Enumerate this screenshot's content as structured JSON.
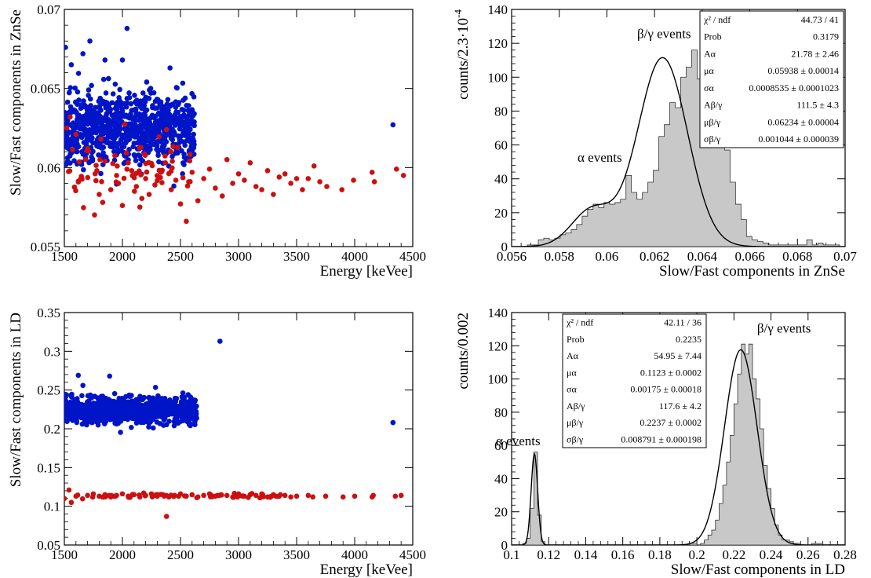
{
  "colors": {
    "beta": "#0014c8",
    "alpha": "#cc0f0f",
    "hist_fill": "#c8c8c8",
    "fit": "#000000"
  },
  "chart_data": [
    {
      "id": "scatter_znse",
      "type": "scatter",
      "xlabel": "Energy [keVee]",
      "ylabel": "Slow/Fast components in ZnSe",
      "xlim": [
        1500,
        4500
      ],
      "ylim": [
        0.055,
        0.07
      ],
      "xticks": [
        "1500",
        "2000",
        "2500",
        "3000",
        "3500",
        "4000",
        "4500"
      ],
      "yticks": [
        "0.055",
        "0.06",
        "0.065",
        "0.07"
      ],
      "series": [
        {
          "color_key": "beta",
          "cluster": {
            "x_range": [
              1500,
              2620
            ],
            "y_mean": 0.0625,
            "y_sigma": 0.00105,
            "count": 900
          },
          "points": [
            [
              2040,
              0.0688
            ],
            [
              1720,
              0.068
            ],
            [
              1510,
              0.0676
            ],
            [
              4330,
              0.0627
            ],
            [
              1660,
              0.0672
            ],
            [
              2000,
              0.0668
            ],
            [
              1850,
              0.0668
            ],
            [
              1560,
              0.0665
            ],
            [
              2410,
              0.0663
            ]
          ]
        },
        {
          "color_key": "alpha",
          "points": [
            [
              1520,
              0.0625
            ],
            [
              1550,
              0.0632
            ],
            [
              1600,
              0.0621
            ],
            [
              1700,
              0.0612
            ],
            [
              1760,
              0.057
            ],
            [
              1780,
              0.0598
            ],
            [
              1800,
              0.0583
            ],
            [
              1830,
              0.0578
            ],
            [
              1850,
              0.0604
            ],
            [
              1900,
              0.0586
            ],
            [
              1950,
              0.0595
            ],
            [
              2000,
              0.0576
            ],
            [
              2050,
              0.0603
            ],
            [
              2080,
              0.0598
            ],
            [
              2120,
              0.0588
            ],
            [
              2150,
              0.0575
            ],
            [
              2200,
              0.0593
            ],
            [
              2230,
              0.0583
            ],
            [
              2280,
              0.0589
            ],
            [
              2330,
              0.0597
            ],
            [
              2380,
              0.0624
            ],
            [
              2420,
              0.0586
            ],
            [
              2460,
              0.0592
            ],
            [
              2500,
              0.0577
            ],
            [
              2550,
              0.0566
            ],
            [
              2600,
              0.0597
            ],
            [
              2650,
              0.0579
            ],
            [
              2700,
              0.0593
            ],
            [
              2750,
              0.0599
            ],
            [
              2800,
              0.0587
            ],
            [
              2860,
              0.0582
            ],
            [
              2900,
              0.0605
            ],
            [
              2950,
              0.059
            ],
            [
              3000,
              0.0596
            ],
            [
              3050,
              0.0592
            ],
            [
              3100,
              0.0603
            ],
            [
              3150,
              0.0588
            ],
            [
              3200,
              0.0586
            ],
            [
              3250,
              0.0598
            ],
            [
              3300,
              0.0583
            ],
            [
              3350,
              0.0594
            ],
            [
              3400,
              0.0596
            ],
            [
              3450,
              0.059
            ],
            [
              3500,
              0.0593
            ],
            [
              3550,
              0.0586
            ],
            [
              3600,
              0.0593
            ],
            [
              3650,
              0.0601
            ],
            [
              3700,
              0.0591
            ],
            [
              3760,
              0.0588
            ],
            [
              3890,
              0.0586
            ],
            [
              3990,
              0.0592
            ],
            [
              4150,
              0.0597
            ],
            [
              4170,
              0.0591
            ],
            [
              4360,
              0.0599
            ],
            [
              4420,
              0.0595
            ]
          ],
          "cluster": {
            "x_range": [
              1530,
              2600
            ],
            "y_mean": 0.0599,
            "y_sigma": 0.0009,
            "count": 70
          }
        }
      ]
    },
    {
      "id": "hist_znse",
      "type": "histogram",
      "xlabel": "Slow/Fast components in ZnSe",
      "ylabel": "counts/2.3·10",
      "ylabel_sup": "-4",
      "xlim": [
        0.056,
        0.07
      ],
      "ylim": [
        0,
        140
      ],
      "xticks": [
        "0.056",
        "0.058",
        "0.06",
        "0.062",
        "0.064",
        "0.066",
        "0.068",
        "0.07"
      ],
      "yticks": [
        "0",
        "20",
        "40",
        "60",
        "80",
        "100",
        "120",
        "140"
      ],
      "bin_width": 0.00023,
      "bin_start": 0.0562,
      "bin_counts": [
        0,
        0,
        1,
        1,
        4,
        5,
        4,
        5,
        7,
        8,
        10,
        13,
        18,
        22,
        25,
        23,
        26,
        25,
        26,
        28,
        42,
        32,
        28,
        32,
        38,
        45,
        65,
        72,
        85,
        82,
        100,
        106,
        116,
        99,
        115,
        103,
        87,
        70,
        57,
        38,
        25,
        16,
        6,
        4,
        3,
        2,
        1,
        1,
        1,
        1,
        1,
        1,
        1,
        4,
        1,
        2,
        1,
        1,
        1,
        0,
        0
      ],
      "fit_curve": {
        "A_alpha": 21.78,
        "mu_alpha": 0.05938,
        "sigma_alpha": 0.0008535,
        "A_beta": 111.5,
        "mu_beta": 0.06234,
        "sigma_beta": 0.001044
      },
      "annotations": [
        {
          "text": "β/γ events",
          "x": 0.0624,
          "y": 123
        },
        {
          "text": "α events",
          "x": 0.0597,
          "y": 50
        }
      ],
      "stats": [
        {
          "label": "χ² / ndf",
          "value": "44.73 / 41"
        },
        {
          "label": "Prob",
          "value": "0.3179"
        },
        {
          "label": "Aα",
          "value": "21.78 ± 2.46"
        },
        {
          "label": "μα",
          "value": "0.05938 ± 0.00014"
        },
        {
          "label": "σα",
          "value": "0.0008535 ± 0.0001023"
        },
        {
          "label": "Aβ/γ",
          "value": "111.5 ± 4.3"
        },
        {
          "label": "μβ/γ",
          "value": "0.06234 ± 0.00004"
        },
        {
          "label": "σβ/γ",
          "value": "0.001044 ± 0.000039"
        }
      ]
    },
    {
      "id": "scatter_ld",
      "type": "scatter",
      "xlabel": "Energy [keVee]",
      "ylabel": "Slow/Fast components in LD",
      "xlim": [
        1500,
        4500
      ],
      "ylim": [
        0.05,
        0.35
      ],
      "xticks": [
        "1500",
        "2000",
        "2500",
        "3000",
        "3500",
        "4000",
        "4500"
      ],
      "yticks": [
        "0.05",
        "0.1",
        "0.15",
        "0.2",
        "0.25",
        "0.3",
        "0.35"
      ],
      "series": [
        {
          "color_key": "beta",
          "cluster": {
            "x_range": [
              1500,
              2640
            ],
            "y_mean": 0.224,
            "y_sigma": 0.0085,
            "count": 900
          },
          "points": [
            [
              2840,
              0.313
            ],
            [
              4330,
              0.208
            ],
            [
              1620,
              0.269
            ],
            [
              1890,
              0.268
            ],
            [
              1660,
              0.256
            ]
          ]
        },
        {
          "color_key": "alpha",
          "points": [
            [
              1500,
              0.11
            ],
            [
              1540,
              0.121
            ],
            [
              1560,
              0.105
            ],
            [
              1600,
              0.113
            ],
            [
              1700,
              0.114
            ],
            [
              1750,
              0.116
            ],
            [
              1800,
              0.113
            ],
            [
              1850,
              0.115
            ],
            [
              1900,
              0.112
            ],
            [
              1950,
              0.114
            ],
            [
              2000,
              0.116
            ],
            [
              2050,
              0.113
            ],
            [
              2100,
              0.115
            ],
            [
              2150,
              0.112
            ],
            [
              2200,
              0.114
            ],
            [
              2250,
              0.116
            ],
            [
              2300,
              0.113
            ],
            [
              2350,
              0.115
            ],
            [
              2380,
              0.087
            ],
            [
              2400,
              0.112
            ],
            [
              2450,
              0.114
            ],
            [
              2500,
              0.116
            ],
            [
              2550,
              0.113
            ],
            [
              2600,
              0.115
            ],
            [
              2650,
              0.112
            ],
            [
              2700,
              0.114
            ],
            [
              2750,
              0.116
            ],
            [
              2800,
              0.113
            ],
            [
              2850,
              0.115
            ],
            [
              2900,
              0.114
            ],
            [
              2950,
              0.112
            ],
            [
              3000,
              0.116
            ],
            [
              3050,
              0.113
            ],
            [
              3100,
              0.115
            ],
            [
              3150,
              0.114
            ],
            [
              3200,
              0.116
            ],
            [
              3250,
              0.112
            ],
            [
              3300,
              0.115
            ],
            [
              3350,
              0.113
            ],
            [
              3400,
              0.114
            ],
            [
              3450,
              0.112
            ],
            [
              3500,
              0.113
            ],
            [
              3600,
              0.114
            ],
            [
              3640,
              0.112
            ],
            [
              3750,
              0.113
            ],
            [
              3900,
              0.112
            ],
            [
              4000,
              0.113
            ],
            [
              4150,
              0.112
            ],
            [
              4160,
              0.114
            ],
            [
              4350,
              0.113
            ],
            [
              4400,
              0.114
            ]
          ],
          "cluster": {
            "x_range": [
              1600,
              3400
            ],
            "y_mean": 0.1135,
            "y_sigma": 0.0015,
            "count": 50
          }
        }
      ]
    },
    {
      "id": "hist_ld",
      "type": "histogram",
      "xlabel": "Slow/Fast components in LD",
      "ylabel": "counts/0.002",
      "ylabel_sup": "",
      "xlim": [
        0.1,
        0.28
      ],
      "ylim": [
        0,
        140
      ],
      "xticks": [
        "0.1",
        "0.12",
        "0.14",
        "0.16",
        "0.18",
        "0.2",
        "0.22",
        "0.24",
        "0.26",
        "0.28"
      ],
      "yticks": [
        "0",
        "20",
        "40",
        "60",
        "80",
        "100",
        "120",
        "140"
      ],
      "bin_width": 0.002,
      "bin_start": 0.1,
      "bin_counts": [
        0,
        0,
        0,
        1,
        4,
        22,
        56,
        18,
        2,
        0,
        0,
        0,
        0,
        0,
        0,
        0,
        0,
        0,
        0,
        0,
        0,
        0,
        0,
        0,
        0,
        0,
        0,
        0,
        0,
        0,
        0,
        0,
        0,
        0,
        0,
        0,
        0,
        0,
        0,
        0,
        0,
        0,
        0,
        0,
        0,
        0,
        0,
        0,
        1,
        1,
        0,
        1,
        3,
        6,
        9,
        15,
        25,
        36,
        50,
        66,
        85,
        103,
        121,
        115,
        121,
        100,
        88,
        70,
        48,
        34,
        22,
        12,
        6,
        3,
        3,
        2,
        1,
        1,
        0,
        0,
        0,
        1,
        1,
        1,
        0,
        0,
        0,
        0,
        0,
        0
      ],
      "fit_curve": {
        "A_alpha": 54.95,
        "mu_alpha": 0.1123,
        "sigma_alpha": 0.00175,
        "A_beta": 117.6,
        "mu_beta": 0.2237,
        "sigma_beta": 0.008791
      },
      "annotations": [
        {
          "text": "β/γ events",
          "x": 0.2325,
          "y": 128
        },
        {
          "text": "α events",
          "x": 0.1155,
          "y": 60
        }
      ],
      "stats": [
        {
          "label": "χ² / ndf",
          "value": "42.11 / 36"
        },
        {
          "label": "Prob",
          "value": "0.2235"
        },
        {
          "label": "Aα",
          "value": "54.95 ± 7.44"
        },
        {
          "label": "μα",
          "value": "0.1123 ± 0.0002"
        },
        {
          "label": "σα",
          "value": "0.00175 ± 0.00018"
        },
        {
          "label": "Aβ/γ",
          "value": "117.6 ± 4.2"
        },
        {
          "label": "μβ/γ",
          "value": "0.2237 ± 0.0002"
        },
        {
          "label": "σβ/γ",
          "value": "0.008791 ± 0.000198"
        }
      ]
    }
  ]
}
